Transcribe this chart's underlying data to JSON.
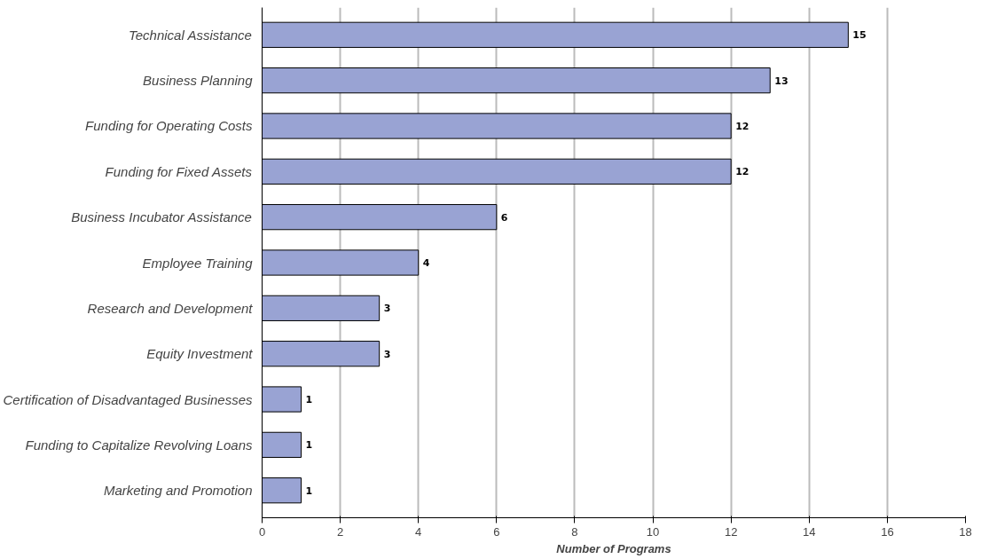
{
  "chart_data": {
    "type": "bar",
    "orientation": "horizontal",
    "xlabel": "Number of Programs",
    "categories": [
      "Technical Assistance",
      "Business Planning",
      "Funding for Operating Costs",
      "Funding for Fixed Assets",
      "Business Incubator Assistance",
      "Employee Training",
      "Research and Development",
      "Equity Investment",
      "Certification of Disadvantaged Businesses",
      "Funding to Capitalize Revolving Loans",
      "Marketing and Promotion"
    ],
    "values": [
      15,
      13,
      12,
      12,
      6,
      4,
      3,
      3,
      1,
      1,
      1
    ],
    "color": "#99a3d3",
    "xlim": [
      0,
      18
    ],
    "xticks": [
      0,
      2,
      4,
      6,
      8,
      10,
      12,
      14,
      16,
      18
    ],
    "grid": "x",
    "data_labels": true
  }
}
